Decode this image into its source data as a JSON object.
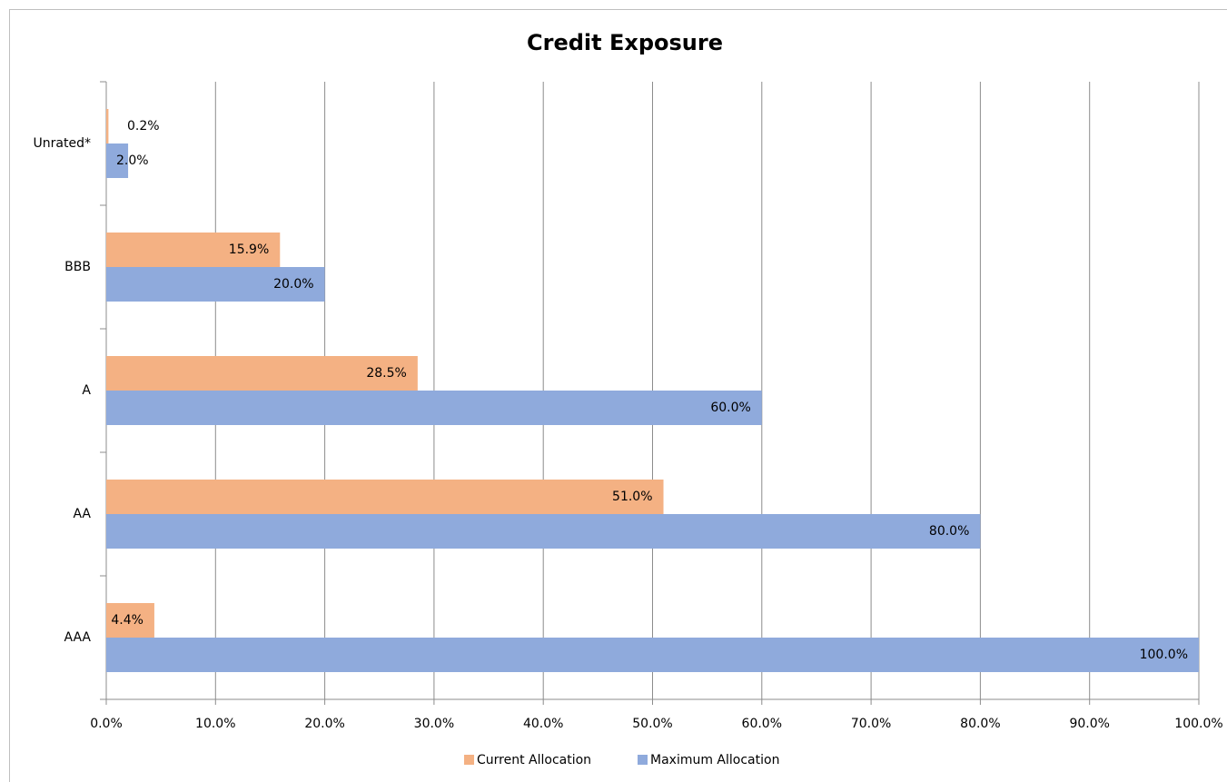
{
  "chart_data": {
    "type": "bar",
    "orientation": "horizontal",
    "title": "Credit Exposure",
    "categories": [
      "AAA",
      "AA",
      "A",
      "BBB",
      "Unrated*"
    ],
    "series": [
      {
        "name": "Current Allocation",
        "color": "#f4b183",
        "values": [
          4.4,
          51.0,
          28.5,
          15.9,
          0.2
        ],
        "value_labels": [
          "4.4%",
          "51.0%",
          "28.5%",
          "15.9%",
          "0.2%"
        ]
      },
      {
        "name": "Maximum Allocation",
        "color": "#8faadc",
        "values": [
          100.0,
          80.0,
          60.0,
          20.0,
          2.0
        ],
        "value_labels": [
          "100.0%",
          "80.0%",
          "60.0%",
          "20.0%",
          "2.0%"
        ]
      }
    ],
    "xlim": [
      0,
      100
    ],
    "xticks": [
      {
        "value": 0,
        "label": "0.0%"
      },
      {
        "value": 10,
        "label": "10.0%"
      },
      {
        "value": 20,
        "label": "20.0%"
      },
      {
        "value": 30,
        "label": "30.0%"
      },
      {
        "value": 40,
        "label": "40.0%"
      },
      {
        "value": 50,
        "label": "50.0%"
      },
      {
        "value": 60,
        "label": "60.0%"
      },
      {
        "value": 70,
        "label": "70.0%"
      },
      {
        "value": 80,
        "label": "80.0%"
      },
      {
        "value": 90,
        "label": "90.0%"
      },
      {
        "value": 100,
        "label": "100.0%"
      }
    ],
    "grid": true,
    "legend": "bottom"
  }
}
